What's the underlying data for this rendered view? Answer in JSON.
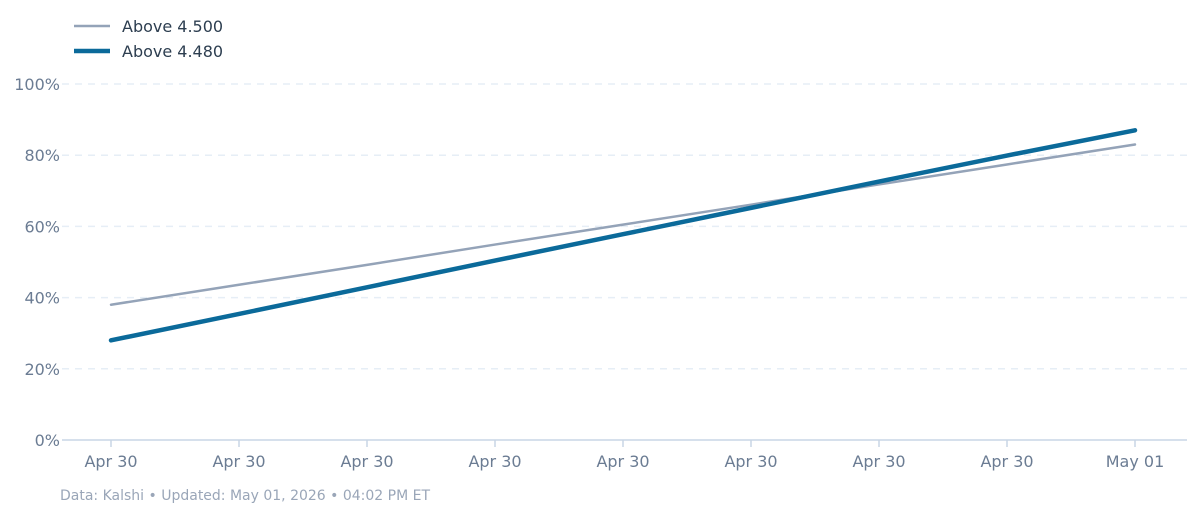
{
  "chart_data": {
    "type": "line",
    "x": [
      "Apr 30",
      "Apr 30",
      "Apr 30",
      "Apr 30",
      "Apr 30",
      "Apr 30",
      "Apr 30",
      "Apr 30",
      "May 01"
    ],
    "series": [
      {
        "name": "Above 4.500",
        "color": "#94a3b8",
        "values": [
          38,
          43.6,
          49.2,
          54.9,
          60.5,
          66.1,
          71.8,
          77.4,
          83
        ]
      },
      {
        "name": "Above 4.480",
        "color": "#0b6a9a",
        "values": [
          28,
          35.4,
          42.9,
          50.4,
          57.8,
          65.2,
          72.6,
          79.9,
          87
        ]
      }
    ],
    "yticks": [
      "0%",
      "20%",
      "40%",
      "60%",
      "80%",
      "100%"
    ],
    "ylim": [
      0,
      100
    ],
    "grid": true,
    "legend": "top-left"
  },
  "footer": "Data: Kalshi • Updated: May 01, 2026 • 04:02 PM ET"
}
